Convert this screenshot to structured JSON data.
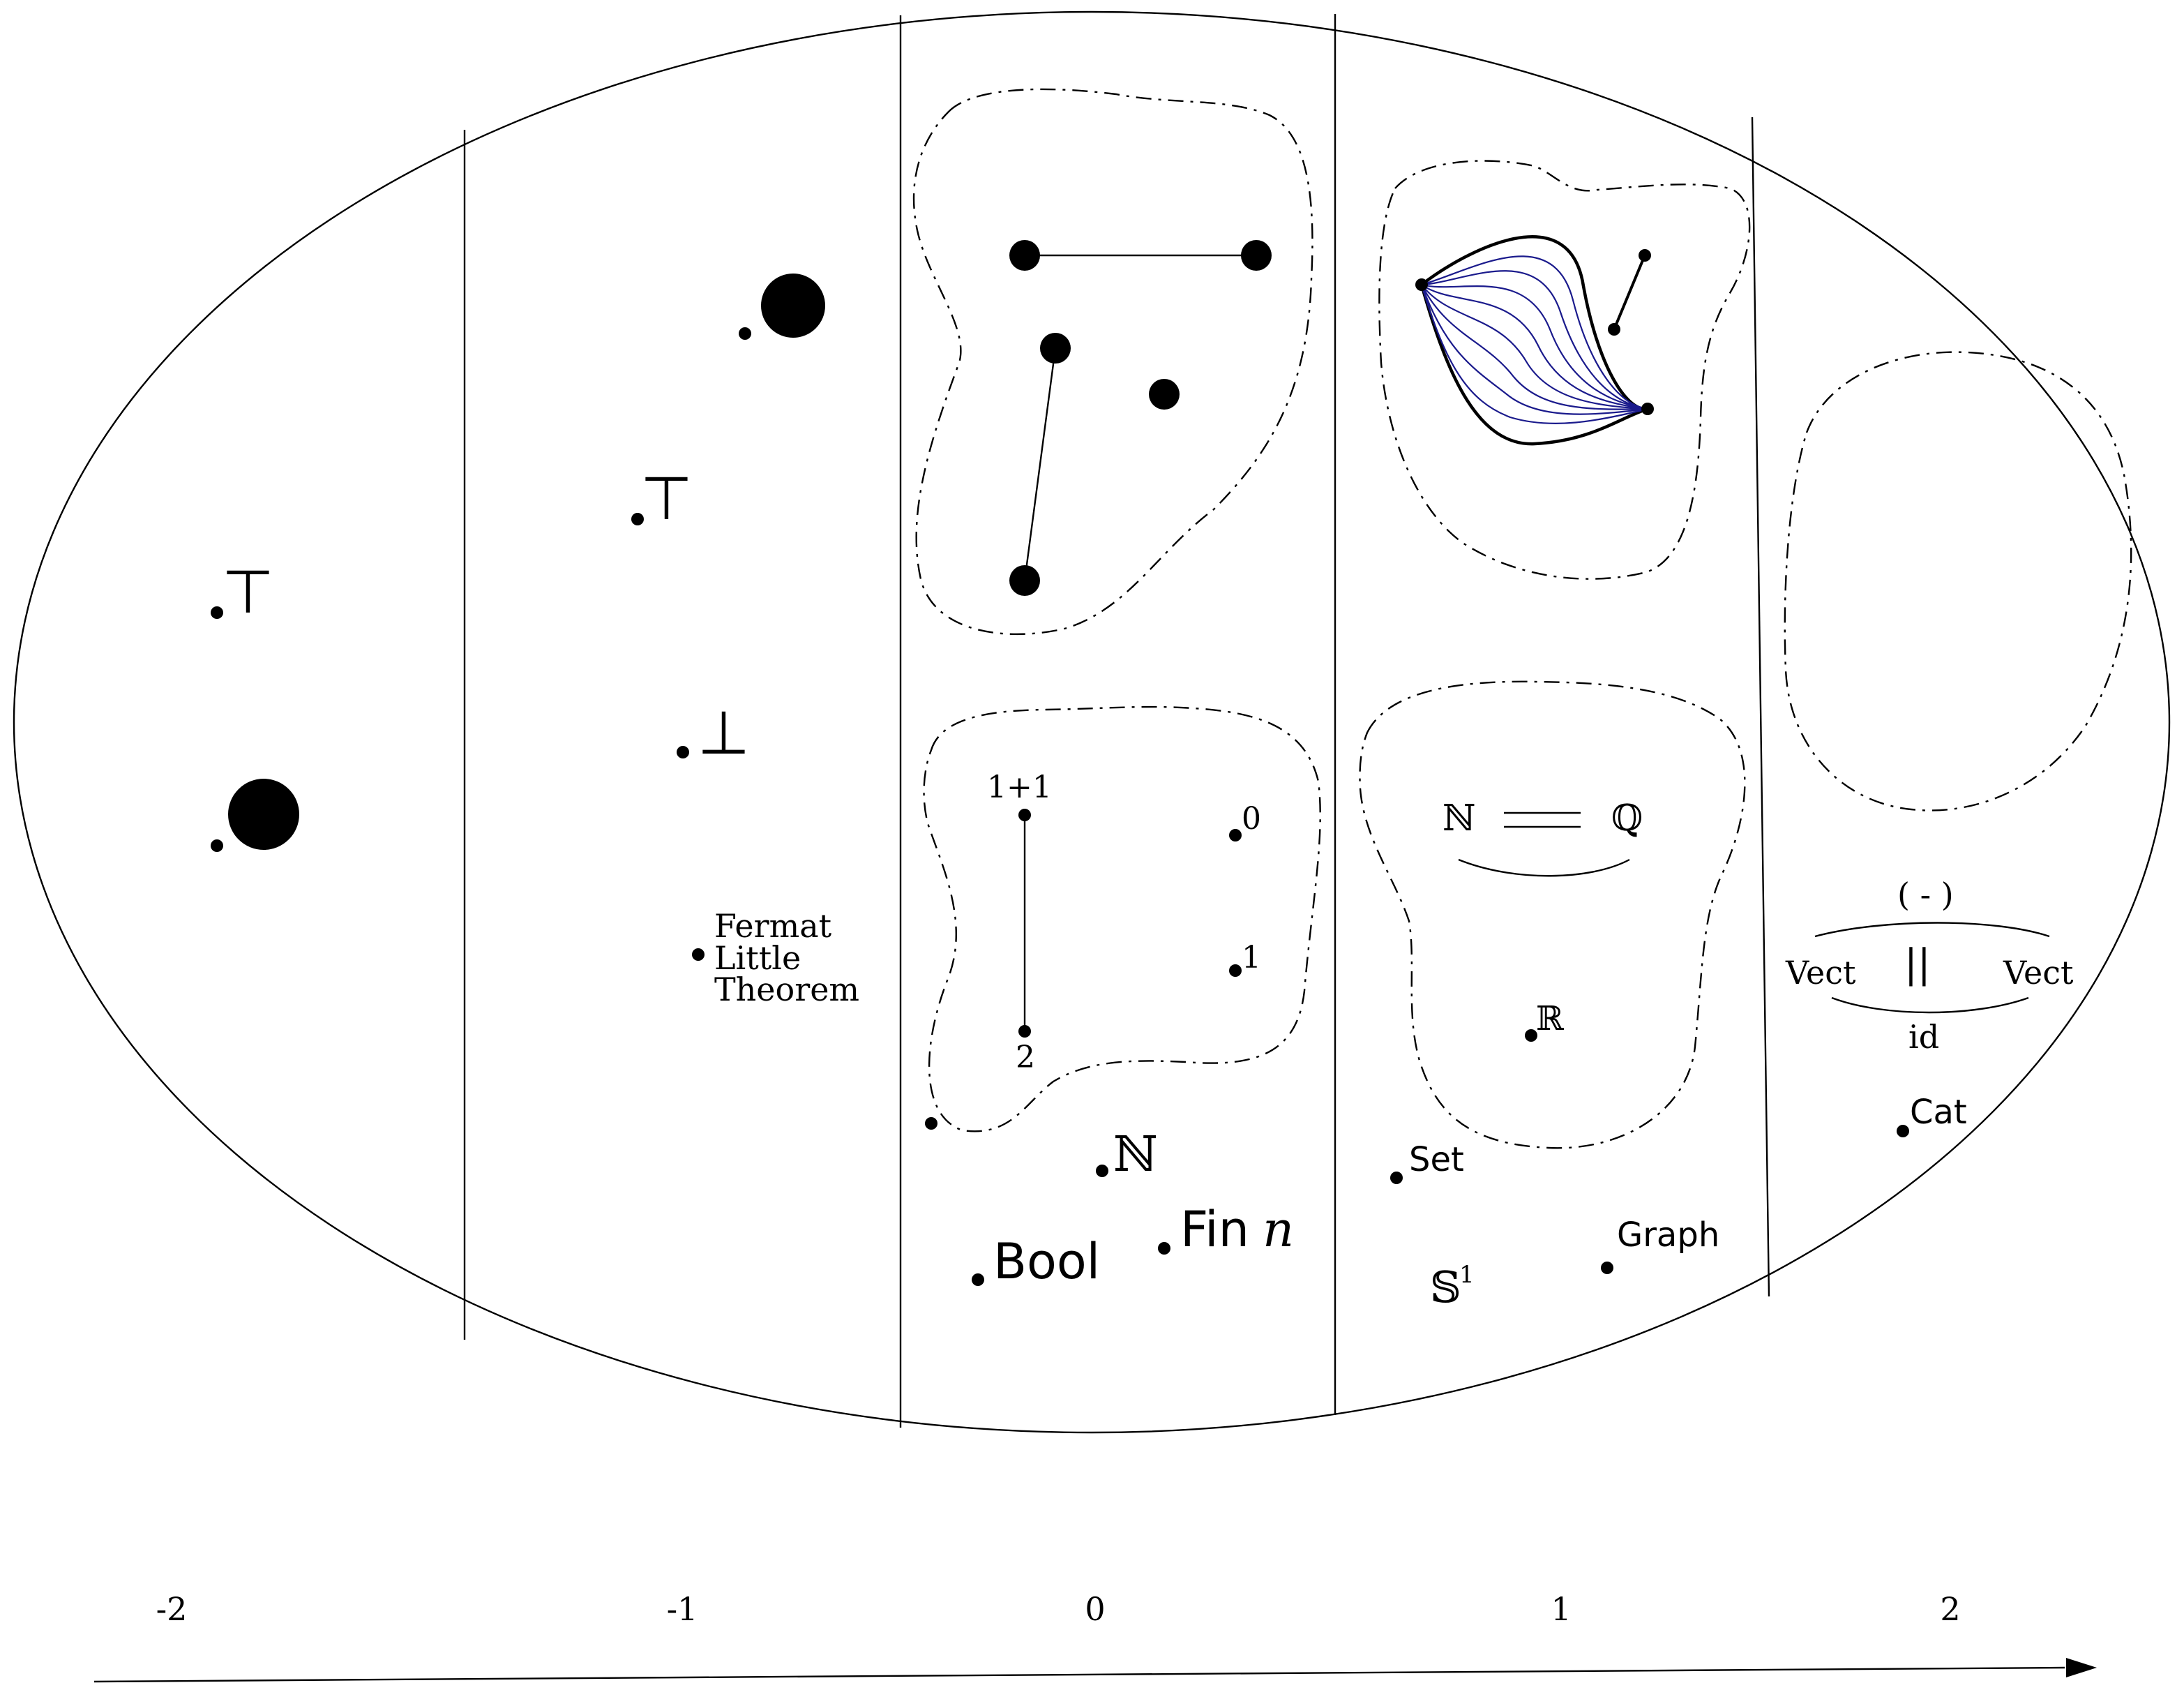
{
  "levels": [
    {
      "label": "-2"
    },
    {
      "label": "-1"
    },
    {
      "label": "0"
    },
    {
      "label": "1"
    },
    {
      "label": "2"
    }
  ],
  "symbols": {
    "top": "⊤",
    "bottom": "⊥",
    "one_plus_one": "1+1",
    "zero": "0",
    "one": "1",
    "two": "2",
    "nat": "ℕ",
    "rat": "ℚ",
    "real": "ℝ",
    "circle_base": "𝕊",
    "circle_exp": "1",
    "fin": "Fin",
    "fin_n": "n",
    "parens_op": "( - )",
    "id": "id",
    "equals_vertical": "||"
  },
  "labels": {
    "fermat": [
      "Fermat",
      "Little",
      "Theorem"
    ],
    "bool": "Bool",
    "set": "Set",
    "graph": "Graph",
    "cat": "Cat",
    "vect": "Vect"
  },
  "colors": {
    "ink": "#000000",
    "homotopy": "#1a1a8c"
  }
}
